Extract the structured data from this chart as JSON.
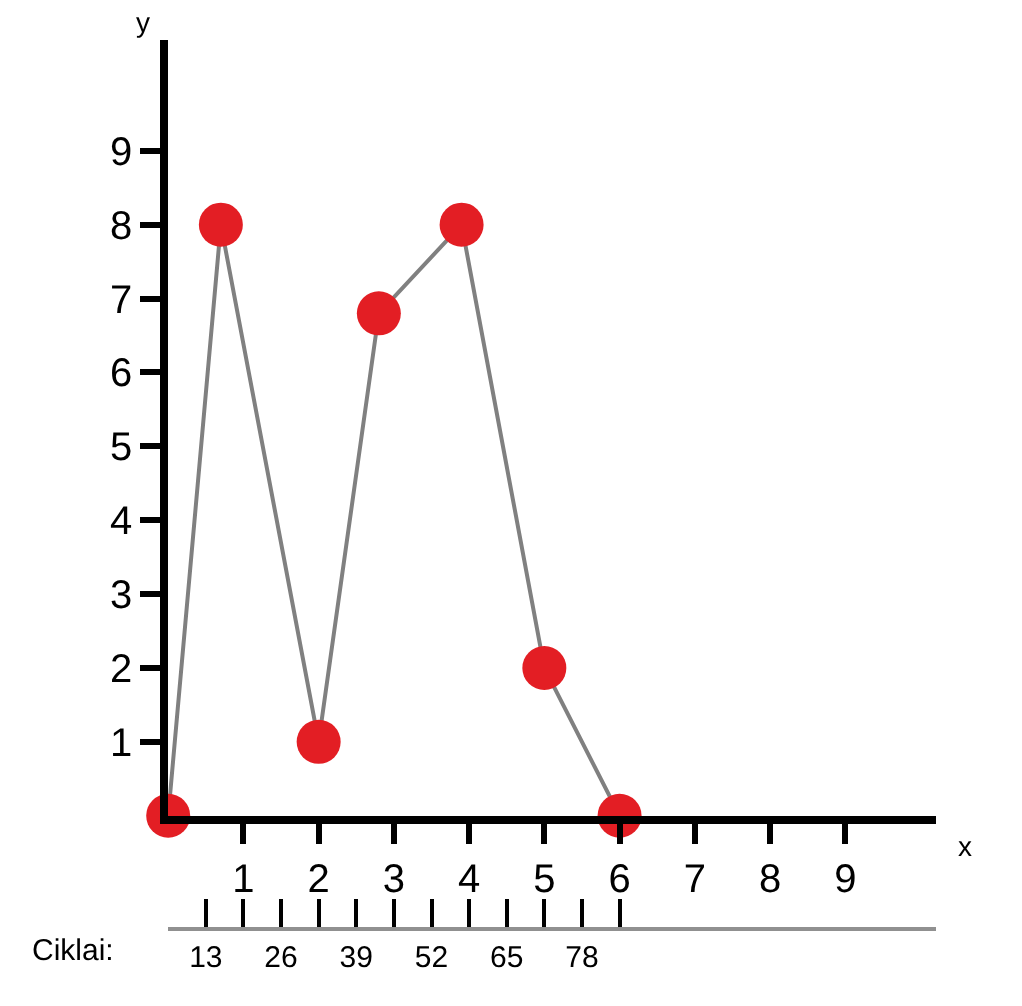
{
  "chart_data": {
    "type": "line",
    "xlabel": "x",
    "ylabel": "y",
    "x2label": "Ciklai:",
    "x": [
      0,
      0.7,
      2,
      2.8,
      3.9,
      5,
      6
    ],
    "series": [
      {
        "color": "#808080",
        "colors": [
          "#e31e24",
          "#e31e24",
          "#e31e24",
          "#e31e24",
          "#e31e24",
          "#e31e24",
          "#e31e24"
        ],
        "values": [
          0,
          8,
          1,
          6.8,
          8,
          2,
          0
        ]
      }
    ],
    "marker": "circle",
    "line_style": "solid",
    "xlim": [
      0,
      10.2
    ],
    "xticks": [
      1,
      2,
      3,
      4,
      5,
      6,
      7,
      8,
      9
    ],
    "ylim": [
      0,
      10.5
    ],
    "yticks": [
      1,
      2,
      3,
      4,
      5,
      6,
      7,
      8,
      9
    ],
    "x2lim": [
      6.5,
      139.1
    ],
    "x2ticks": [
      13,
      26,
      39,
      52,
      65,
      78,
      {
        "value": 19.5,
        "label": null
      },
      {
        "value": 32.5,
        "label": null
      },
      {
        "value": 45.5,
        "label": null
      },
      {
        "value": 58.5,
        "label": null
      },
      {
        "value": 71.5,
        "label": null
      },
      {
        "value": 84.5,
        "label": null
      }
    ]
  }
}
